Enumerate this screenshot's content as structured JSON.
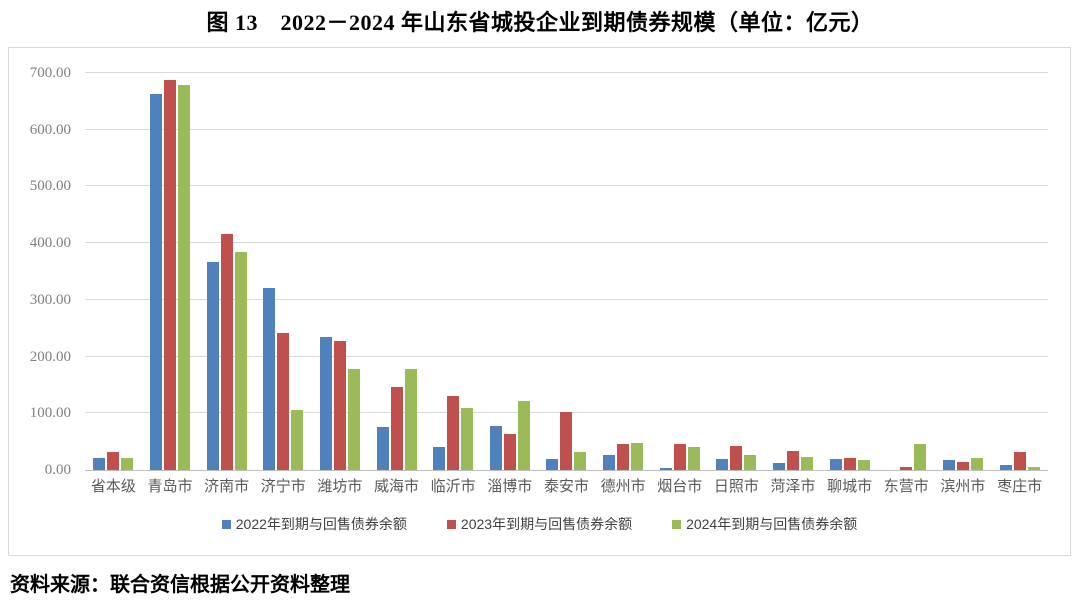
{
  "page": {
    "title": "图 13　2022－2024 年山东省城投企业到期债券规模（单位：亿元）",
    "source_note": "资料来源：联合资信根据公开资料整理"
  },
  "chart_data": {
    "type": "bar",
    "title": "图 13　2022－2024 年山东省城投企业到期债券规模（单位：亿元）",
    "unit": "亿元",
    "categories": [
      "省本级",
      "青岛市",
      "济南市",
      "济宁市",
      "潍坊市",
      "威海市",
      "临沂市",
      "淄博市",
      "泰安市",
      "德州市",
      "烟台市",
      "日照市",
      "菏泽市",
      "聊城市",
      "东营市",
      "滨州市",
      "枣庄市"
    ],
    "series": [
      {
        "name": "2022年到期与回售债券余额",
        "color": "#4F81BD",
        "values": [
          21,
          663,
          367,
          321,
          234,
          75,
          40,
          78,
          20,
          26,
          4,
          19,
          13,
          20,
          0,
          17,
          8
        ]
      },
      {
        "name": "2023年到期与回售债券余额",
        "color": "#C0504D",
        "values": [
          31,
          687,
          417,
          241,
          227,
          147,
          130,
          64,
          102,
          46,
          46,
          42,
          33,
          22,
          6,
          15,
          31
        ]
      },
      {
        "name": "2024年到期与回售债券余额",
        "color": "#9BBB59",
        "values": [
          21,
          679,
          385,
          106,
          178,
          178,
          109,
          122,
          32,
          48,
          40,
          27,
          23,
          17,
          46,
          21,
          6
        ]
      }
    ],
    "ylim": [
      0,
      700
    ],
    "y_tick_step": 100,
    "y_tick_labels": [
      "0.00",
      "100.00",
      "200.00",
      "300.00",
      "400.00",
      "500.00",
      "600.00",
      "700.00"
    ],
    "grid": "horizontal-gridlines-on",
    "legend_position": "bottom"
  },
  "colors": {
    "series_2022": "#4F81BD",
    "series_2023": "#C0504D",
    "series_2024": "#9BBB59",
    "gridline": "#d9d9d9",
    "axis_line": "#bfbfbf",
    "frame_border": "#d9d9d9",
    "y_label_text": "#7f7f7f",
    "x_label_text": "#595959"
  }
}
